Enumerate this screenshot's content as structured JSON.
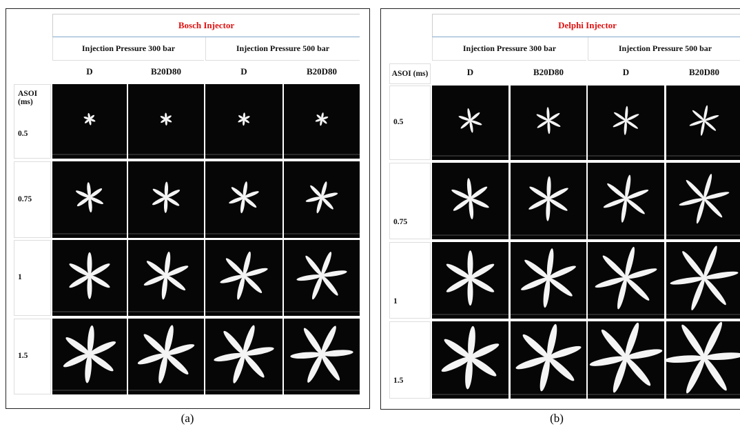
{
  "panels": [
    {
      "title": "Bosch Injector",
      "pressures": [
        "Injection Pressure 300 bar",
        "Injection Pressure 500 bar"
      ],
      "fuels": [
        "D",
        "B20D80",
        "D",
        "B20D80"
      ],
      "asoi_label": "ASOI (ms)",
      "rows": [
        "0.5",
        "0.75",
        "1",
        "1.5"
      ],
      "caption": "(a)"
    },
    {
      "title": "Delphi Injector",
      "pressures": [
        "Injection Pressure 300 bar",
        "Injection Pressure 500 bar"
      ],
      "fuels": [
        "D",
        "B20D80",
        "D",
        "B20D80"
      ],
      "asoi_label": "ASOI (ms)",
      "rows": [
        "0.5",
        "0.75",
        "1",
        "1.5"
      ],
      "caption": "(b)"
    }
  ]
}
